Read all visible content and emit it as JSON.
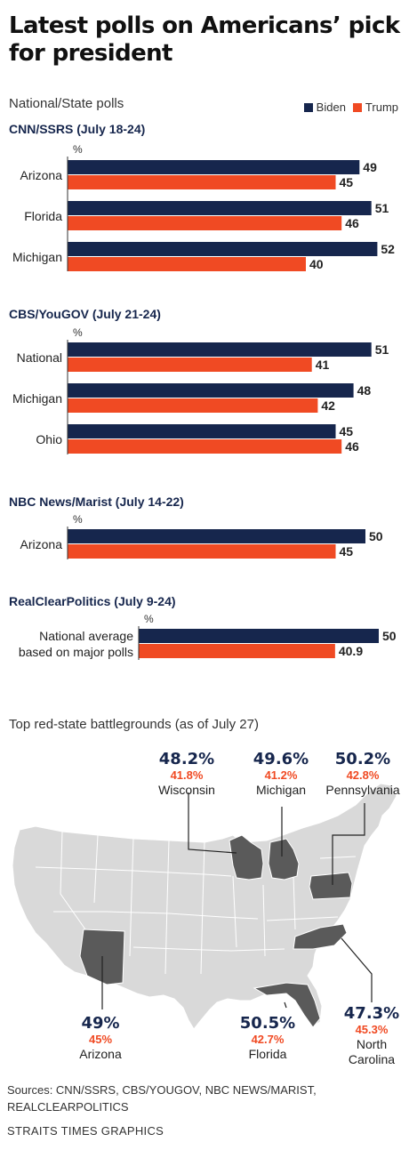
{
  "title": "Latest polls on Americans’ pick for president",
  "subtitle": "National/State polls",
  "legend": [
    {
      "name": "Biden",
      "color": "#16264d"
    },
    {
      "name": "Trump",
      "color": "#f04a23"
    }
  ],
  "unit": "%",
  "chart_data": [
    {
      "type": "bar",
      "title": "CNN/SSRS (July 18-24)",
      "categories": [
        "Arizona",
        "Florida",
        "Michigan"
      ],
      "series": [
        {
          "name": "Biden",
          "values": [
            49,
            51,
            52
          ]
        },
        {
          "name": "Trump",
          "values": [
            45,
            46,
            40
          ]
        }
      ],
      "value_labels": {
        "Biden": [
          "49",
          "51",
          "52"
        ],
        "Trump": [
          "45",
          "46",
          "40"
        ]
      }
    },
    {
      "type": "bar",
      "title": "CBS/YouGOV (July 21-24)",
      "categories": [
        "National",
        "Michigan",
        "Ohio"
      ],
      "series": [
        {
          "name": "Biden",
          "values": [
            51,
            48,
            45
          ]
        },
        {
          "name": "Trump",
          "values": [
            41,
            42,
            46
          ]
        }
      ],
      "value_labels": {
        "Biden": [
          "51",
          "48",
          "45"
        ],
        "Trump": [
          "41",
          "42",
          "46"
        ]
      }
    },
    {
      "type": "bar",
      "title": "NBC News/Marist (July 14-22)",
      "categories": [
        "Arizona"
      ],
      "series": [
        {
          "name": "Biden",
          "values": [
            50
          ]
        },
        {
          "name": "Trump",
          "values": [
            45
          ]
        }
      ],
      "value_labels": {
        "Biden": [
          "50"
        ],
        "Trump": [
          "45"
        ]
      }
    },
    {
      "type": "bar",
      "title": "RealClearPolitics (July 9-24)",
      "categories": [
        "National average based on major polls"
      ],
      "category_lines": [
        [
          "National average",
          "based on major polls"
        ]
      ],
      "series": [
        {
          "name": "Biden",
          "values": [
            50
          ]
        },
        {
          "name": "Trump",
          "values": [
            40.9
          ]
        }
      ],
      "value_labels": {
        "Biden": [
          "50"
        ],
        "Trump": [
          "40.9"
        ]
      }
    }
  ],
  "map": {
    "title": "Top red-state battlegrounds (as of July 27)",
    "colors": {
      "land": "#d9d9d9",
      "border": "#ffffff",
      "highlight": "#5a5a5a",
      "leader": "#222222"
    },
    "states": [
      {
        "name": "Wisconsin",
        "biden": "48.2%",
        "trump": "41.8%"
      },
      {
        "name": "Michigan",
        "biden": "49.6%",
        "trump": "41.2%"
      },
      {
        "name": "Pennsylvania",
        "biden": "50.2%",
        "trump": "42.8%"
      },
      {
        "name": "Arizona",
        "biden": "49%",
        "trump": "45%"
      },
      {
        "name": "Florida",
        "biden": "50.5%",
        "trump": "42.7%"
      },
      {
        "name": "North Carolina",
        "name_lines": [
          "North",
          "Carolina"
        ],
        "biden": "47.3%",
        "trump": "45.3%"
      }
    ]
  },
  "sources": "Sources: CNN/SSRS, CBS/YOUGOV, NBC NEWS/MARIST, REALCLEARPOLITICS",
  "credit": "STRAITS TIMES GRAPHICS"
}
